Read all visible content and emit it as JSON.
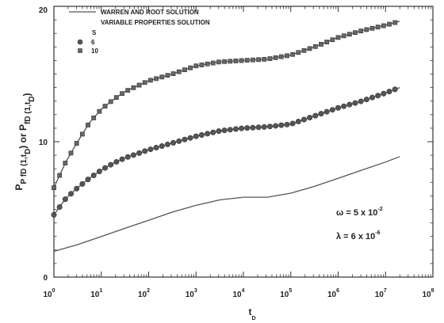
{
  "chart_data": {
    "type": "line",
    "title": "",
    "xlabel": "t",
    "xlabel_sub": "D",
    "ylabel_parts": [
      {
        "t": "P",
        "sub": ""
      },
      {
        "t": "",
        "sub": "P fD (1,t"
      },
      {
        "t": "",
        "sub": "D"
      },
      {
        "t": ")  or  P",
        "sub": ""
      },
      {
        "t": "",
        "sub": "fD (1,t"
      },
      {
        "t": "",
        "sub": "D"
      },
      {
        "t": ")",
        "sub": ""
      }
    ],
    "x_scale": "log",
    "xlim_exp": [
      0,
      8
    ],
    "x_tick_base": "10",
    "x_tick_exponents": [
      "0",
      "1",
      "2",
      "3",
      "4",
      "5",
      "6",
      "7",
      "8"
    ],
    "ylim": [
      0,
      20
    ],
    "y_ticks": [
      "0",
      "10",
      "20"
    ],
    "grid": false,
    "legend": {
      "position": "top-left",
      "line_label": "WARREN AND ROOT SOLUTION",
      "markers_label": "VARIABLE PROPERTIES SOLUTION",
      "s_header": "S",
      "entries": [
        {
          "marker": "circle",
          "label": "6"
        },
        {
          "marker": "square",
          "label": "10"
        }
      ]
    },
    "annotations": [
      {
        "parts": [
          {
            "t": "ω  =  5  x 10",
            "sup": ""
          },
          {
            "t": "",
            "sup": "-2"
          }
        ]
      },
      {
        "parts": [
          {
            "t": "λ  =  6  x 10",
            "sup": ""
          },
          {
            "t": "",
            "sup": "-6"
          }
        ]
      }
    ],
    "series": [
      {
        "name": "WARREN AND ROOT SOLUTION",
        "marker": "none",
        "x_exp": [
          0,
          0.5,
          1,
          1.5,
          2,
          2.5,
          3,
          3.5,
          4,
          4.5,
          5,
          5.5,
          6,
          6.5,
          7,
          7.3
        ],
        "y": [
          1.9,
          2.4,
          3.0,
          3.6,
          4.2,
          4.8,
          5.3,
          5.7,
          5.9,
          5.9,
          6.2,
          6.7,
          7.3,
          7.9,
          8.5,
          8.9
        ]
      },
      {
        "name": "6",
        "marker": "circle",
        "x_exp": [
          0,
          0.25,
          0.5,
          0.75,
          1,
          1.25,
          1.5,
          1.75,
          2,
          2.5,
          3,
          3.5,
          4,
          4.5,
          5,
          5.5,
          6,
          6.5,
          7,
          7.3
        ],
        "y": [
          4.6,
          5.8,
          6.6,
          7.3,
          7.9,
          8.4,
          8.8,
          9.1,
          9.4,
          9.9,
          10.4,
          10.8,
          11.0,
          11.1,
          11.3,
          11.9,
          12.5,
          13.0,
          13.6,
          14.0
        ]
      },
      {
        "name": "10",
        "marker": "square",
        "x_exp": [
          0,
          0.25,
          0.5,
          0.75,
          1,
          1.25,
          1.5,
          1.75,
          2,
          2.5,
          3,
          3.5,
          4,
          4.5,
          5,
          5.5,
          6,
          6.5,
          7,
          7.3
        ],
        "y": [
          6.6,
          8.5,
          10.0,
          11.4,
          12.4,
          13.1,
          13.7,
          14.1,
          14.5,
          15.0,
          15.6,
          15.9,
          16.0,
          16.1,
          16.4,
          17.0,
          17.7,
          18.2,
          18.6,
          18.9
        ]
      }
    ]
  }
}
